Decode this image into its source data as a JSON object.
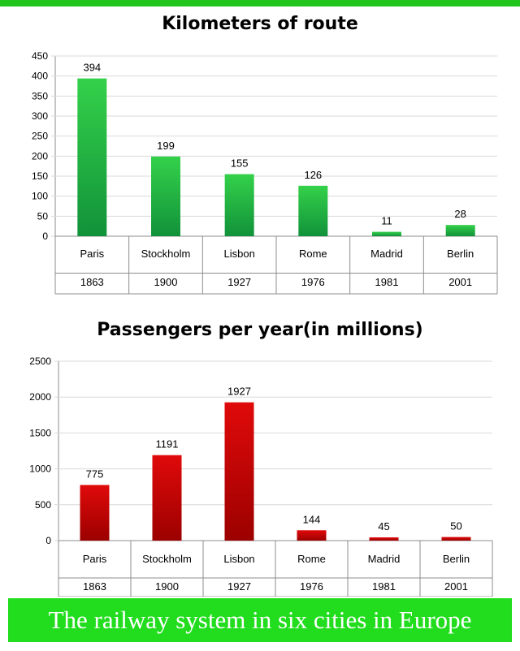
{
  "caption": "The railway system in six cities in Europe",
  "colors": {
    "green": "#22b838",
    "red": "#cc0000",
    "caption_bg": "#22dd1e"
  },
  "chart_data": [
    {
      "type": "bar",
      "title": "Kilometers of route",
      "categories": [
        "Paris",
        "Stockholm",
        "Lisbon",
        "Rome",
        "Madrid",
        "Berlin"
      ],
      "years": [
        "1863",
        "1900",
        "1927",
        "1976",
        "1981",
        "2001"
      ],
      "values": [
        394,
        199,
        155,
        126,
        11,
        28
      ],
      "ylim": [
        0,
        450
      ],
      "yticks": [
        0,
        50,
        100,
        150,
        200,
        250,
        300,
        350,
        400,
        450
      ],
      "grid": true,
      "color": "#22b838"
    },
    {
      "type": "bar",
      "title": "Passengers per year(in millions)",
      "categories": [
        "Paris",
        "Stockholm",
        "Lisbon",
        "Rome",
        "Madrid",
        "Berlin"
      ],
      "years": [
        "1863",
        "1900",
        "1927",
        "1976",
        "1981",
        "2001"
      ],
      "values": [
        775,
        1191,
        1927,
        144,
        45,
        50
      ],
      "ylim": [
        0,
        2500
      ],
      "yticks": [
        0,
        500,
        1000,
        1500,
        2000,
        2500
      ],
      "grid": true,
      "color": "#cc0000"
    }
  ]
}
